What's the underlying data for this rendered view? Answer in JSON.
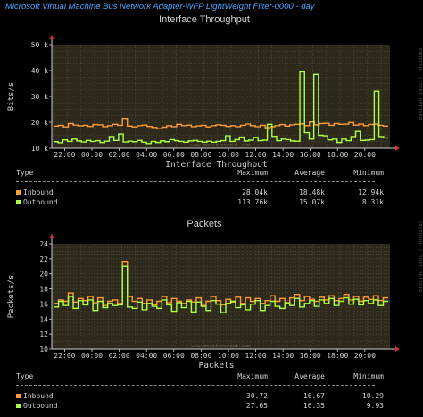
{
  "page_title": "Microsoft Virtual Machine Bus Network Adapter-WFP LightWeight Filter-0000 - day",
  "side_text": "PROTOCOL / TOBI OETIKER",
  "watermark": "www.monitorscout.com",
  "colors": {
    "inbound": "#ff9933",
    "outbound": "#aaff44",
    "plot_bg": "#2d2a1c",
    "grid": "#5a5340",
    "axis": "#cfcfcf",
    "arrow": "#cc3333"
  },
  "chart_data": [
    {
      "type": "line",
      "title": "Interface Throughput",
      "xlabel": "Interface Throughput",
      "ylabel": "Bits/s",
      "x_ticks": [
        "22:00",
        "00:00",
        "02:00",
        "04:00",
        "06:00",
        "08:00",
        "10:00",
        "12:00",
        "14:00",
        "16:00",
        "18:00",
        "20:00"
      ],
      "y_ticks": [
        "10 k",
        "20 k",
        "30 k",
        "40 k",
        "50 k"
      ],
      "ylim": [
        10000,
        50000
      ],
      "x_range_hours": [
        20.6,
        21.0
      ],
      "grid": true,
      "series": [
        {
          "name": "Inbound",
          "color": "#ff9933",
          "values": [
            18500,
            18800,
            18200,
            19500,
            18900,
            18600,
            18800,
            18400,
            19100,
            19000,
            18300,
            18700,
            19200,
            18800,
            21500,
            18500,
            18200,
            18700,
            18900,
            18400,
            18000,
            17500,
            18100,
            18700,
            18300,
            19200,
            18700,
            18900,
            18300,
            18600,
            18800,
            18200,
            18700,
            19000,
            18800,
            18400,
            18700,
            18300,
            18800,
            19300,
            18700,
            18300,
            18800,
            17900,
            18300,
            18700,
            19100,
            18500,
            19000,
            19200,
            19400,
            18700,
            20100,
            19000,
            19500,
            19600,
            18800,
            19500,
            19200,
            19300,
            19900,
            18900,
            19300,
            18700,
            19100,
            19300,
            18800,
            18500
          ]
        },
        {
          "name": "Outbound",
          "color": "#aaff44",
          "values": [
            12500,
            12100,
            13200,
            12600,
            13500,
            12800,
            12400,
            13000,
            12600,
            12900,
            12200,
            12700,
            14500,
            13000,
            15500,
            12400,
            12700,
            12500,
            13000,
            12300,
            11800,
            12600,
            12200,
            12800,
            12500,
            13300,
            12900,
            12600,
            12300,
            12800,
            13000,
            12600,
            12300,
            12700,
            12300,
            12600,
            12900,
            14800,
            12600,
            13300,
            14300,
            12800,
            13100,
            14200,
            12900,
            13100,
            19200,
            14600,
            12900,
            13500,
            13300,
            12800,
            12700,
            39500,
            16000,
            13500,
            38500,
            15000,
            14800,
            13200,
            13500,
            12200,
            13500,
            12900,
            14500,
            16500,
            13000,
            13100,
            13300,
            32000,
            14500,
            14000
          ]
        }
      ]
    },
    {
      "type": "line",
      "title": "Packets",
      "xlabel": "Packets",
      "ylabel": "Packets/s",
      "x_ticks": [
        "22:00",
        "00:00",
        "02:00",
        "04:00",
        "06:00",
        "08:00",
        "10:00",
        "12:00",
        "14:00",
        "16:00",
        "18:00",
        "20:00"
      ],
      "y_ticks": [
        "10",
        "12",
        "14",
        "16",
        "18",
        "20",
        "22",
        "24"
      ],
      "ylim": [
        10,
        25
      ],
      "grid": true,
      "series": [
        {
          "name": "Inbound",
          "color": "#ff9933",
          "values": [
            16.5,
            17,
            16.8,
            18,
            16.7,
            17.2,
            16.9,
            17.5,
            16.6,
            17.3,
            16.2,
            16.8,
            17,
            16.5,
            22.5,
            17.5,
            16.8,
            17.2,
            16.5,
            17,
            16.3,
            16.8,
            17.5,
            16.6,
            17.2,
            16.8,
            16.5,
            17,
            16.7,
            17.3,
            16.2,
            16.8,
            17.5,
            16.9,
            16.3,
            17.1,
            16.7,
            17.4,
            16.5,
            17.3,
            16.8,
            17.2,
            16.5,
            16.9,
            17.6,
            16.8,
            17.2,
            16.5,
            17.3,
            17.8,
            16.9,
            17.5,
            17.1,
            16.8,
            17.4,
            17,
            17.6,
            16.9,
            17.2,
            17.8,
            17,
            17.5,
            16.8,
            17.4,
            17.1,
            17.6,
            16.9,
            17.3
          ]
        },
        {
          "name": "Outbound",
          "color": "#aaff44",
          "values": [
            16,
            16.8,
            16.2,
            17.5,
            15.8,
            16.9,
            16.3,
            17,
            15.5,
            16.8,
            15.9,
            16.5,
            16.2,
            16.3,
            21.8,
            16,
            15.8,
            16.7,
            15.6,
            16.5,
            16.1,
            15.8,
            17,
            16.3,
            15.4,
            16.6,
            15.9,
            16.8,
            15.3,
            16.7,
            16.1,
            15.5,
            16.9,
            16.4,
            15.2,
            16.5,
            16.8,
            15.9,
            16.3,
            15.6,
            16.4,
            16.9,
            15.5,
            16.2,
            16.8,
            16.1,
            15.8,
            16.6,
            16.2,
            17.2,
            16,
            16.5,
            16.9,
            16.1,
            17,
            16.5,
            17.2,
            16.2,
            16.8,
            17.3,
            16.4,
            17.1,
            16.3,
            16.9,
            16.5,
            17,
            16.2,
            16.8
          ]
        }
      ]
    }
  ],
  "tables": [
    {
      "headers": {
        "type": "Type",
        "max": "Maximum",
        "avg": "Average",
        "min": "Minimum"
      },
      "rows": [
        {
          "name": "Inbound",
          "max": "28.04k",
          "avg": "18.48k",
          "min": "12.94k"
        },
        {
          "name": "Outbound",
          "max": "113.76k",
          "avg": "15.07k",
          "min": "8.31k"
        }
      ]
    },
    {
      "headers": {
        "type": "Type",
        "max": "Maximum",
        "avg": "Average",
        "min": "Minimum"
      },
      "rows": [
        {
          "name": "Inbound",
          "max": "30.72",
          "avg": "16.67",
          "min": "10.29"
        },
        {
          "name": "Outbound",
          "max": "27.65",
          "avg": "16.35",
          "min": "9.93"
        }
      ]
    }
  ]
}
